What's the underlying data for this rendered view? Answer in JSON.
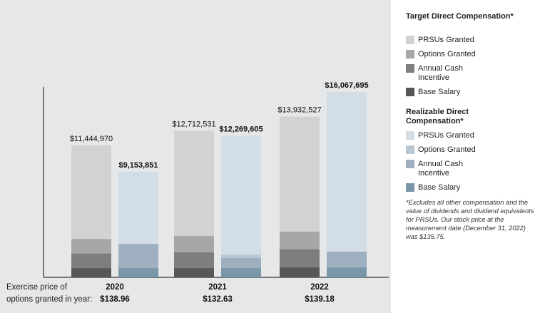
{
  "chart_data": {
    "type": "bar",
    "subtype": "grouped-stacked",
    "categories": [
      "2020",
      "2021",
      "2022"
    ],
    "groups": [
      {
        "name": "Target Direct Compensation",
        "totals": [
          "$11,444,970",
          "$12,712,531",
          "$13,932,527"
        ],
        "components": [
          {
            "name": "Base Salary",
            "values": [
              800000,
              800000,
              875000
            ]
          },
          {
            "name": "Annual Cash Incentive",
            "values": [
              1280000,
              1380000,
              1570000
            ]
          },
          {
            "name": "Options Granted",
            "values": [
              1250000,
              1400000,
              1530000
            ]
          },
          {
            "name": "PRSUs Granted",
            "values": [
              8114970,
              9132531,
              9957527
            ]
          }
        ]
      },
      {
        "name": "Realizable Direct Compensation",
        "totals": [
          "$9,153,851",
          "$12,269,605",
          "$16,067,695"
        ],
        "components": [
          {
            "name": "Base Salary",
            "values": [
              800000,
              800000,
              875000
            ]
          },
          {
            "name": "Annual Cash Incentive",
            "values": [
              2100000,
              870000,
              1360000
            ]
          },
          {
            "name": "Options Granted",
            "values": [
              0,
              300000,
              0
            ]
          },
          {
            "name": "PRSUs Granted",
            "values": [
              6253851,
              10299605,
              13832695
            ]
          }
        ]
      }
    ],
    "ylim": [
      0,
      16500000
    ],
    "xlabel": "",
    "ylabel": "",
    "colors": {
      "target": [
        "#575757",
        "#7e7e7e",
        "#a7a7a7",
        "#d2d2d2"
      ],
      "realizable": [
        "#7a97aa",
        "#9eb0c0",
        "#b9c7d3",
        "#d3dde5"
      ]
    },
    "exercise": {
      "label_line1": "Exercise price of",
      "label_line2": "options granted in year:",
      "prices": [
        "$138.96",
        "$132.63",
        "$139.18"
      ]
    }
  },
  "legend": {
    "target_title": "Target Direct Compensation*",
    "target_items": [
      {
        "label": "PRSUs Granted",
        "color": "#d2d2d2"
      },
      {
        "label": "Options Granted",
        "color": "#a7a7a7"
      },
      {
        "label": "Annual Cash Incentive",
        "color": "#7e7e7e"
      },
      {
        "label": "Base Salary",
        "color": "#575757"
      }
    ],
    "realizable_title": "Realizable Direct Compensation*",
    "realizable_items": [
      {
        "label": "PRSUs Granted",
        "color": "#d3dde5"
      },
      {
        "label": "Options Granted",
        "color": "#b9c7d3"
      },
      {
        "label": "Annual Cash Incentive",
        "color": "#9eb0c0"
      },
      {
        "label": "Base Salary",
        "color": "#7a97aa"
      }
    ],
    "footnote": "*Excludes all other compensation and the value of dividends and dividend equivalents for PRSUs. Our stock price at the measurement date (December 31, 2022) was $135.75."
  }
}
